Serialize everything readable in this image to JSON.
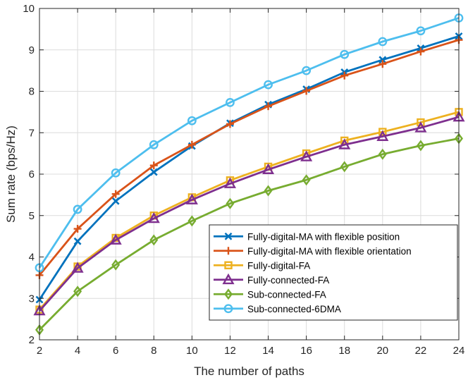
{
  "chart_data": {
    "type": "line",
    "title": "",
    "xlabel": "The number of paths",
    "ylabel": "Sum rate (bps/Hz)",
    "xlim": [
      2,
      24
    ],
    "ylim": [
      2,
      10
    ],
    "xticks": [
      2,
      4,
      6,
      8,
      10,
      12,
      14,
      16,
      18,
      20,
      22,
      24
    ],
    "yticks": [
      2,
      3,
      4,
      5,
      6,
      7,
      8,
      9,
      10
    ],
    "grid": true,
    "legend_position": "bottom-right",
    "x": [
      2,
      4,
      6,
      8,
      10,
      12,
      14,
      16,
      18,
      20,
      22,
      24
    ],
    "series": [
      {
        "name": "Fully-digital-MA with flexible position",
        "color": "#0072BD",
        "marker": "x-icon",
        "values": [
          2.97,
          4.38,
          5.35,
          6.05,
          6.68,
          7.23,
          7.68,
          8.05,
          8.46,
          8.76,
          9.04,
          9.33
        ]
      },
      {
        "name": "Fully-digital-MA with flexible orientation",
        "color": "#D95319",
        "marker": "plus-icon",
        "values": [
          3.56,
          4.68,
          5.52,
          6.21,
          6.71,
          7.21,
          7.64,
          8.01,
          8.38,
          8.66,
          8.96,
          9.24
        ]
      },
      {
        "name": "Fully-digital-FA",
        "color": "#EDB120",
        "marker": "square-icon",
        "values": [
          2.73,
          3.77,
          4.46,
          5.0,
          5.44,
          5.85,
          6.18,
          6.5,
          6.81,
          7.02,
          7.25,
          7.5
        ]
      },
      {
        "name": "Fully-connected-FA",
        "color": "#7E2F8E",
        "marker": "triangle-icon",
        "values": [
          2.7,
          3.73,
          4.41,
          4.93,
          5.38,
          5.77,
          6.11,
          6.42,
          6.71,
          6.91,
          7.12,
          7.38
        ]
      },
      {
        "name": "Sub-connected-FA",
        "color": "#77AC30",
        "marker": "diamond-icon",
        "values": [
          2.24,
          3.17,
          3.81,
          4.41,
          4.87,
          5.29,
          5.6,
          5.86,
          6.18,
          6.48,
          6.69,
          6.86
        ]
      },
      {
        "name": "Sub-connected-6DMA",
        "color": "#4DBEEE",
        "marker": "circle-icon",
        "values": [
          3.74,
          5.15,
          6.03,
          6.71,
          7.29,
          7.73,
          8.16,
          8.5,
          8.89,
          9.2,
          9.46,
          9.77
        ]
      }
    ]
  }
}
